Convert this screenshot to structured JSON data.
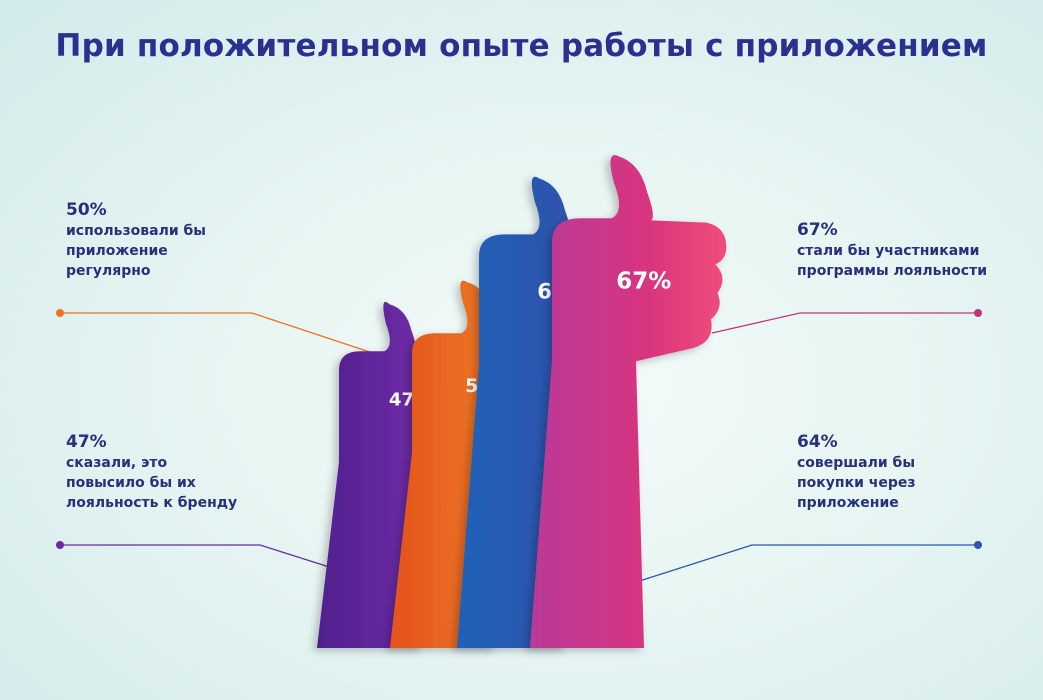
{
  "title": "При положительном опыте работы с приложением",
  "colors": {
    "purple": "#6a2aa3",
    "orange": "#f0701d",
    "blue": "#2b56b3",
    "pink": "#e2367f",
    "text": "#26317a",
    "title": "#2b2f8e"
  },
  "chart_data": {
    "type": "bar",
    "title": "При положительном опыте работы с приложением",
    "categories": [
      "сказали, это повысило бы их лояльность к бренду",
      "использовали бы приложение регулярно",
      "совершали бы покупки через приложение",
      "стали бы участниками программы лояльности"
    ],
    "values": [
      47,
      50,
      64,
      67
    ],
    "value_labels": [
      "47%",
      "50%",
      "64%",
      "67%"
    ],
    "unit": "%",
    "bar_icon": "thumbs-up-icon",
    "bar_colors": [
      "#6a2aa3",
      "#f0701d",
      "#2b56b3",
      "#e2367f"
    ]
  },
  "callouts": [
    {
      "pct": "50%",
      "text": "использовали бы\nприложение\nрегулярно",
      "color": "#f0701d"
    },
    {
      "pct": "47%",
      "text": "сказали, это\nповысило бы их\nлояльность к бренду",
      "color": "#6a2aa3"
    },
    {
      "pct": "67%",
      "text": "стали бы участниками\nпрограммы лояльности",
      "color": "#e2367f"
    },
    {
      "pct": "64%",
      "text": "совершали бы\nпокупки через\nприложение",
      "color": "#2b56b3"
    }
  ]
}
